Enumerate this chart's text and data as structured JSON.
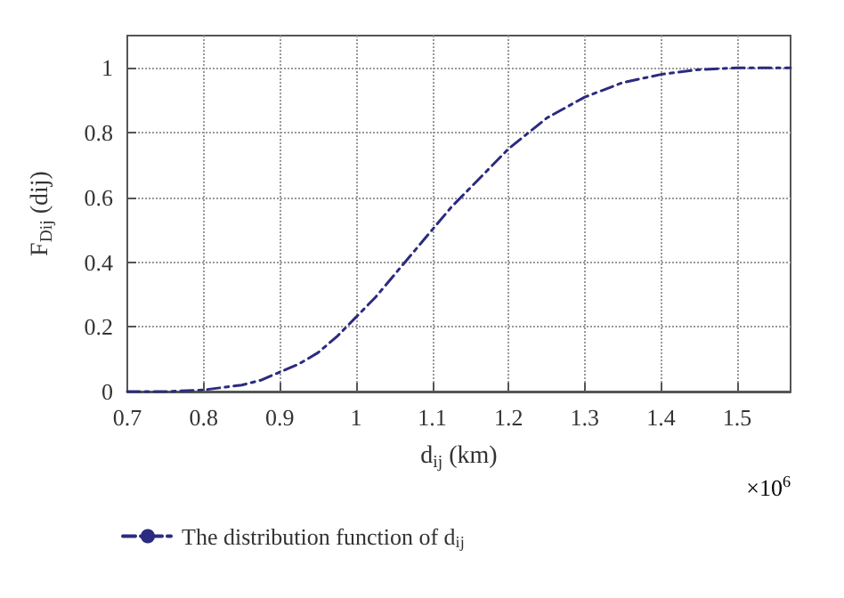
{
  "chart_data": {
    "type": "line",
    "xlabel": "d$_{ij}$ (km)",
    "ylabel": "F$_{Dij}$ (dij)",
    "annotations": [
      "×10$^{6}$"
    ],
    "x": [
      0.7,
      0.75,
      0.8,
      0.85,
      0.875,
      0.9,
      0.925,
      0.95,
      0.975,
      1.0,
      1.025,
      1.05,
      1.075,
      1.1,
      1.125,
      1.15,
      1.175,
      1.2,
      1.25,
      1.3,
      1.35,
      1.4,
      1.45,
      1.5,
      1.57
    ],
    "series": [
      {
        "name": "The distribution function of d$_{ij}$",
        "color": "#2b2b80",
        "values": [
          0,
          0,
          0.005,
          0.02,
          0.035,
          0.06,
          0.085,
          0.12,
          0.17,
          0.23,
          0.29,
          0.36,
          0.43,
          0.5,
          0.57,
          0.63,
          0.69,
          0.75,
          0.845,
          0.91,
          0.955,
          0.98,
          0.995,
          1.0,
          1.0
        ]
      }
    ],
    "xlim": [
      0.7,
      1.57
    ],
    "xticks": [
      0.7,
      0.8,
      0.9,
      1,
      1.1,
      1.2,
      1.3,
      1.4,
      1.5
    ],
    "ylim": [
      0,
      1.1
    ],
    "yticks": [
      0,
      0.2,
      0.4,
      0.6,
      0.8,
      1
    ],
    "grid": true,
    "legend": "bottom left",
    "line_style": "dashed",
    "marker": "none"
  }
}
